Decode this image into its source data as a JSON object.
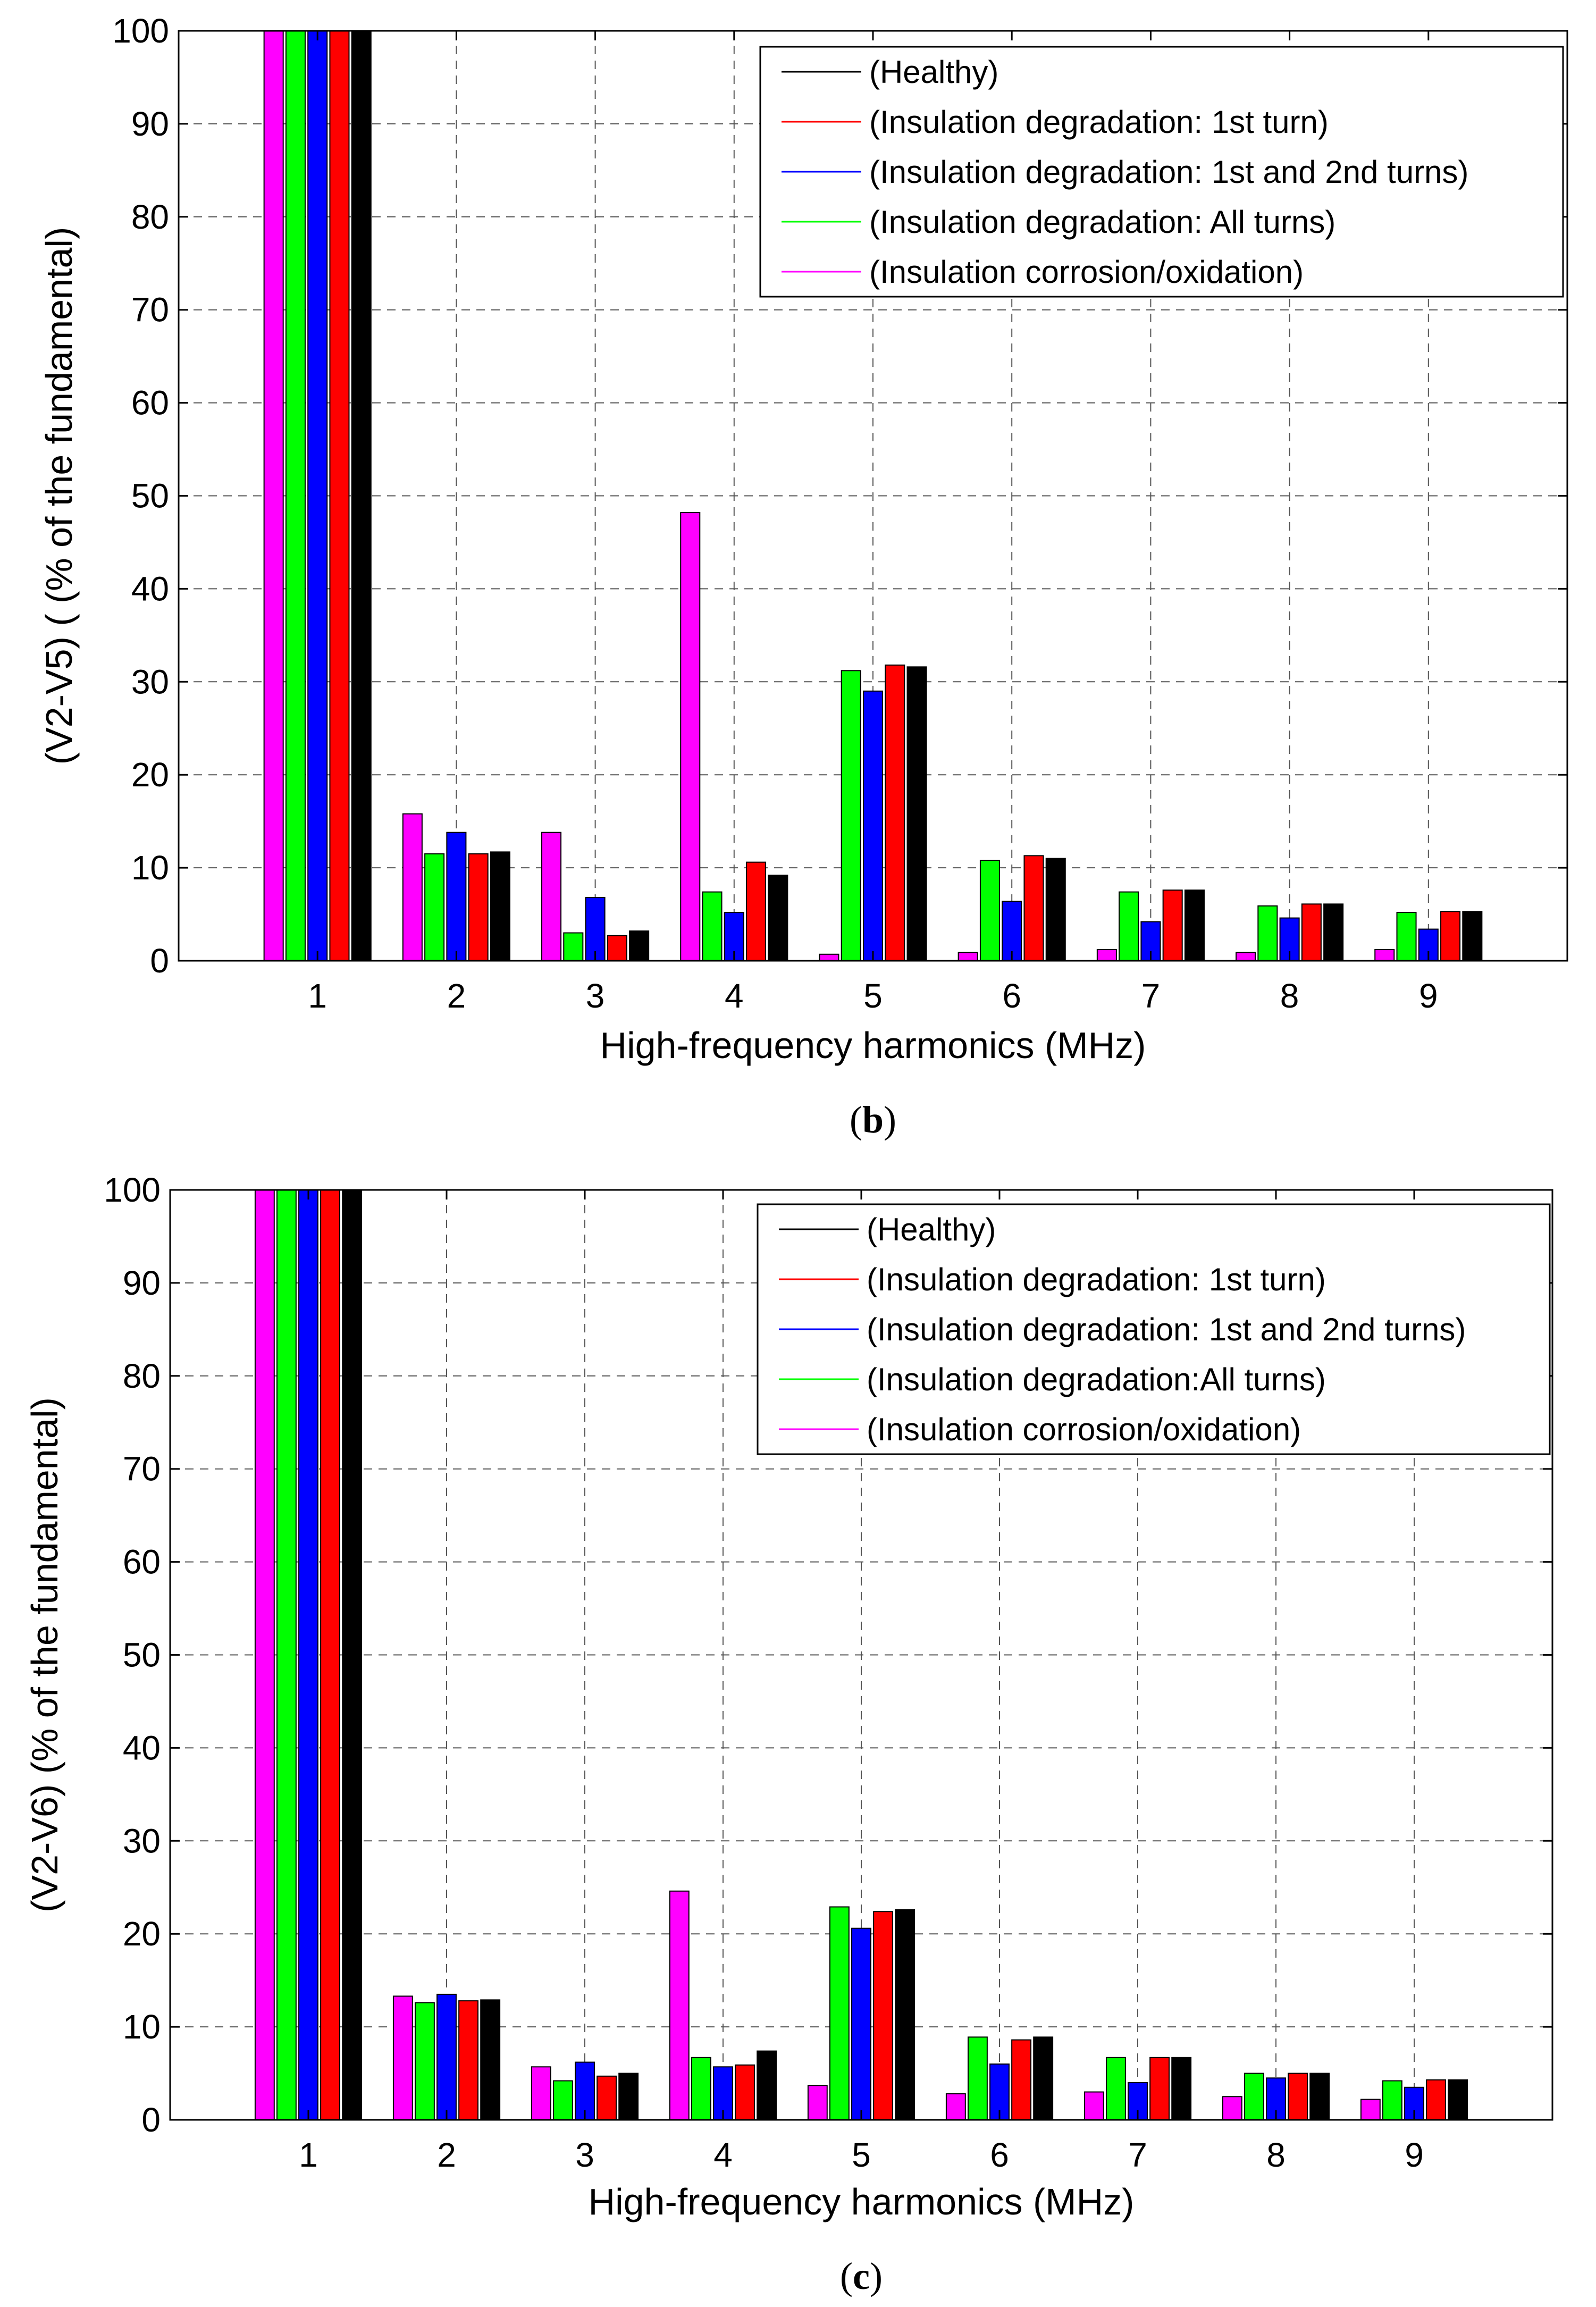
{
  "chart_data": [
    {
      "type": "bar",
      "panel": "b",
      "caption_letter": "b",
      "ylabel": "(V2-V5) ( (% of the fundamental)",
      "xlabel": "High-frequency harmonics (MHz)",
      "ylim": [
        0,
        100
      ],
      "yticks": [
        "0",
        "10",
        "20",
        "30",
        "40",
        "50",
        "60",
        "70",
        "80",
        "90",
        "100"
      ],
      "categories": [
        "1",
        "2",
        "3",
        "4",
        "5",
        "6",
        "7",
        "8",
        "9"
      ],
      "grid": true,
      "legend_position": "top-right",
      "series": [
        {
          "name": "(Insulation corrosion/oxidation)",
          "color": "#ff00ff",
          "values": [
            100,
            15.8,
            13.8,
            48.2,
            0.7,
            0.9,
            1.2,
            0.9,
            1.2
          ]
        },
        {
          "name": "(Insulation degradation: All turns)",
          "color": "#00ff00",
          "values": [
            100,
            11.5,
            3.0,
            7.4,
            31.2,
            10.8,
            7.4,
            5.9,
            5.2
          ]
        },
        {
          "name": "(Insulation degradation: 1st and 2nd turns)",
          "color": "#0000ff",
          "values": [
            100,
            13.8,
            6.8,
            5.2,
            29.0,
            6.4,
            4.2,
            4.6,
            3.4
          ]
        },
        {
          "name": "(Insulation degradation: 1st turn)",
          "color": "#ff0000",
          "values": [
            100,
            11.5,
            2.7,
            10.6,
            31.8,
            11.3,
            7.6,
            6.1,
            5.3
          ]
        },
        {
          "name": "(Healthy)",
          "color": "#000000",
          "values": [
            100,
            11.7,
            3.2,
            9.2,
            31.6,
            11.0,
            7.6,
            6.1,
            5.3
          ]
        }
      ],
      "legend_entries": [
        {
          "label": "(Healthy)",
          "color": "#000000"
        },
        {
          "label": "(Insulation degradation: 1st turn)",
          "color": "#ff0000"
        },
        {
          "label": "(Insulation degradation: 1st and 2nd turns)",
          "color": "#0000ff"
        },
        {
          "label": "(Insulation degradation: All turns)",
          "color": "#00ff00"
        },
        {
          "label": "(Insulation corrosion/oxidation)",
          "color": "#ff00ff"
        }
      ]
    },
    {
      "type": "bar",
      "panel": "c",
      "caption_letter": "c",
      "ylabel": "(V2-V6) (% of the fundamental)",
      "xlabel": "High-frequency harmonics (MHz)",
      "ylim": [
        0,
        100
      ],
      "yticks": [
        "0",
        "10",
        "20",
        "30",
        "40",
        "50",
        "60",
        "70",
        "80",
        "90",
        "100"
      ],
      "categories": [
        "1",
        "2",
        "3",
        "4",
        "5",
        "6",
        "7",
        "8",
        "9"
      ],
      "grid": true,
      "legend_position": "top-right",
      "series": [
        {
          "name": "(Insulation corrosion/oxidation)",
          "color": "#ff00ff",
          "values": [
            100,
            13.3,
            5.7,
            24.6,
            3.7,
            2.8,
            3.0,
            2.5,
            2.2
          ]
        },
        {
          "name": "(Insulation degradation:All turns)",
          "color": "#00ff00",
          "values": [
            100,
            12.6,
            4.2,
            6.7,
            22.9,
            8.9,
            6.7,
            5.0,
            4.2
          ]
        },
        {
          "name": "(Insulation degradation: 1st and 2nd turns)",
          "color": "#0000ff",
          "values": [
            100,
            13.5,
            6.2,
            5.7,
            20.6,
            6.0,
            4.0,
            4.5,
            3.5
          ]
        },
        {
          "name": "(Insulation degradation: 1st turn)",
          "color": "#ff0000",
          "values": [
            100,
            12.8,
            4.7,
            5.9,
            22.4,
            8.6,
            6.7,
            5.0,
            4.3
          ]
        },
        {
          "name": "(Healthy)",
          "color": "#000000",
          "values": [
            100,
            12.9,
            5.0,
            7.4,
            22.6,
            8.9,
            6.7,
            5.0,
            4.3
          ]
        }
      ],
      "legend_entries": [
        {
          "label": "(Healthy)",
          "color": "#000000"
        },
        {
          "label": "(Insulation degradation: 1st turn)",
          "color": "#ff0000"
        },
        {
          "label": "(Insulation degradation: 1st and 2nd turns)",
          "color": "#0000ff"
        },
        {
          "label": "(Insulation degradation:All turns)",
          "color": "#00ff00"
        },
        {
          "label": "(Insulation corrosion/oxidation)",
          "color": "#ff00ff"
        }
      ]
    }
  ]
}
